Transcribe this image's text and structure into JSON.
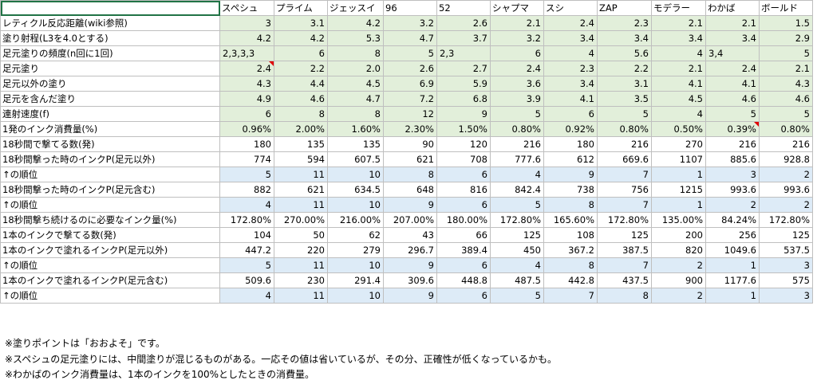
{
  "headers": [
    "",
    "スペシュ",
    "プライム",
    "ジェッスイ",
    "96",
    "52",
    "シャプマ",
    "スシ",
    "ZAP",
    "モデラー",
    "わかば",
    "ボールド"
  ],
  "rows": [
    {
      "label": "レティクル反応距離(wiki参照)",
      "style": "green",
      "values": [
        "3",
        "3.1",
        "4.2",
        "3.2",
        "2.6",
        "2.1",
        "2.4",
        "2.3",
        "2.1",
        "2.1",
        "1.5"
      ]
    },
    {
      "label": "塗り射程(L3を4.0とする)",
      "style": "green",
      "values": [
        "4.2",
        "4.2",
        "5.3",
        "4.7",
        "3.7",
        "3.2",
        "3.4",
        "3.4",
        "3.4",
        "3.4",
        "2.9"
      ]
    },
    {
      "label": "足元塗りの頻度(n回に1回)",
      "style": "green",
      "values": [
        "2,3,3,3",
        "6",
        "8",
        "5",
        "2,3",
        "6",
        "4",
        "5.6",
        "4",
        "3,4",
        "5"
      ]
    },
    {
      "label": "足元塗り",
      "style": "green",
      "values": [
        "2.4",
        "2.2",
        "2.0",
        "2.6",
        "2.7",
        "2.4",
        "2.3",
        "2.2",
        "2.1",
        "2.4",
        "2.1"
      ]
    },
    {
      "label": "足元以外の塗り",
      "style": "green",
      "values": [
        "4.3",
        "4.4",
        "4.5",
        "6.9",
        "5.9",
        "3.6",
        "3.4",
        "3.1",
        "4.1",
        "4.1",
        "4.3"
      ]
    },
    {
      "label": "足元を含んだ塗り",
      "style": "green",
      "values": [
        "4.9",
        "4.6",
        "4.7",
        "7.2",
        "6.8",
        "3.9",
        "4.1",
        "3.5",
        "4.5",
        "4.6",
        "4.6"
      ]
    },
    {
      "label": "連射速度(f)",
      "style": "green",
      "values": [
        "6",
        "8",
        "8",
        "12",
        "9",
        "5",
        "6",
        "5",
        "4",
        "5",
        "5"
      ]
    },
    {
      "label": "1発のインク消費量(%)",
      "style": "green",
      "values": [
        "0.96%",
        "2.00%",
        "1.60%",
        "2.30%",
        "1.50%",
        "0.80%",
        "0.92%",
        "0.80%",
        "0.50%",
        "0.39%",
        "0.80%"
      ]
    },
    {
      "label": "18秒間で撃てる数(発)",
      "style": "plain",
      "values": [
        "180",
        "135",
        "135",
        "90",
        "120",
        "216",
        "180",
        "216",
        "270",
        "216",
        "216"
      ]
    },
    {
      "label": "18秒間撃った時のインクP(足元以外)",
      "style": "plain",
      "values": [
        "774",
        "594",
        "607.5",
        "621",
        "708",
        "777.6",
        "612",
        "669.6",
        "1107",
        "885.6",
        "928.8"
      ]
    },
    {
      "label": "↑の順位",
      "style": "blue",
      "values": [
        "5",
        "11",
        "10",
        "8",
        "6",
        "4",
        "9",
        "7",
        "1",
        "3",
        "2"
      ]
    },
    {
      "label": "18秒間撃った時のインクP(足元含む)",
      "style": "plain",
      "values": [
        "882",
        "621",
        "634.5",
        "648",
        "816",
        "842.4",
        "738",
        "756",
        "1215",
        "993.6",
        "993.6"
      ]
    },
    {
      "label": "↑の順位",
      "style": "blue",
      "values": [
        "4",
        "11",
        "10",
        "9",
        "6",
        "5",
        "8",
        "7",
        "1",
        "2",
        "2"
      ]
    },
    {
      "label": "18秒間撃ち続けるのに必要なインク量(%)",
      "style": "plain",
      "values": [
        "172.80%",
        "270.00%",
        "216.00%",
        "207.00%",
        "180.00%",
        "172.80%",
        "165.60%",
        "172.80%",
        "135.00%",
        "84.24%",
        "172.80%"
      ]
    },
    {
      "label": "1本のインクで撃てる数(発)",
      "style": "plain",
      "values": [
        "104",
        "50",
        "62",
        "43",
        "66",
        "125",
        "108",
        "125",
        "200",
        "256",
        "125"
      ]
    },
    {
      "label": "1本のインクで塗れるインクP(足元以外)",
      "style": "plain",
      "values": [
        "447.2",
        "220",
        "279",
        "296.7",
        "389.4",
        "450",
        "367.2",
        "387.5",
        "820",
        "1049.6",
        "537.5"
      ]
    },
    {
      "label": "↑の順位",
      "style": "blue",
      "values": [
        "5",
        "11",
        "10",
        "9",
        "6",
        "4",
        "8",
        "7",
        "2",
        "1",
        "3"
      ]
    },
    {
      "label": "1本のインクで塗れるインクP(足元含む)",
      "style": "plain",
      "values": [
        "509.6",
        "230",
        "291.4",
        "309.6",
        "448.8",
        "487.5",
        "442.8",
        "437.5",
        "900",
        "1177.6",
        "575"
      ]
    },
    {
      "label": "↑の順位",
      "style": "blue",
      "values": [
        "4",
        "11",
        "10",
        "9",
        "6",
        "5",
        "7",
        "8",
        "2",
        "1",
        "3"
      ]
    }
  ],
  "notes": [
    "※塗りポイントは「おおよそ」です。",
    "※スペシュの足元塗りには、中間塗りが混じるものがある。一応その値は省いているが、その分、正確性が低くなっているかも。",
    "※わかばのインク消費量は、1本のインクを100%としたときの消費量。"
  ]
}
